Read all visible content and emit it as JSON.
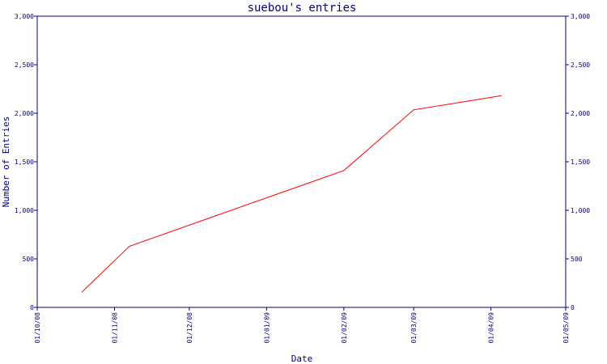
{
  "chart_data": {
    "type": "line",
    "title": "suebou's entries",
    "xlabel": "Date",
    "ylabel": "Number of Entries",
    "x_ticks": [
      "01/10/08",
      "01/11/08",
      "01/12/08",
      "01/01/09",
      "01/02/09",
      "01/03/09",
      "01/04/09",
      "01/05/09"
    ],
    "y_ticks": [
      "0",
      "500",
      "1,000",
      "1,500",
      "2,000",
      "2,500",
      "3,000"
    ],
    "ylim": [
      0,
      3000
    ],
    "xlim": [
      "2008-10-01",
      "2009-05-01"
    ],
    "grid": false,
    "series": [
      {
        "color": "#ff0000",
        "x": [
          "2008-10-19",
          "2008-11-07",
          "2009-02-01",
          "2009-03-01",
          "2009-04-05"
        ],
        "values": [
          160,
          630,
          1410,
          2035,
          2180
        ]
      }
    ]
  },
  "colors": {
    "axis": "#000080",
    "line": "#ff0000",
    "background": "#ffffff"
  }
}
